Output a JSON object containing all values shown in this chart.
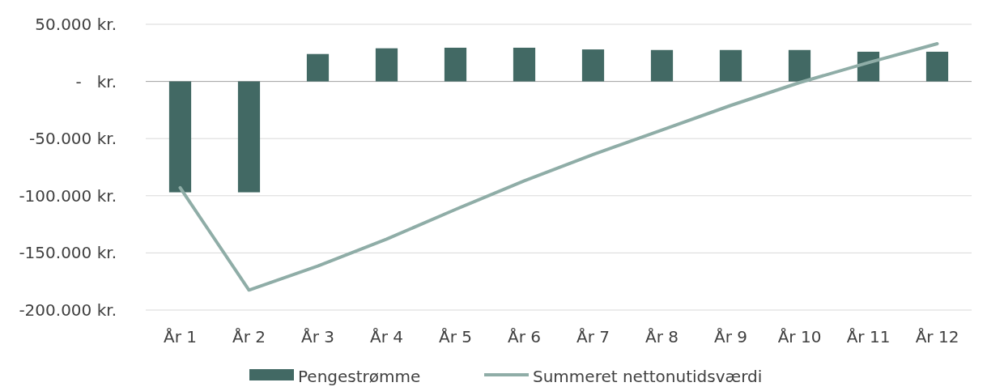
{
  "chart_data": {
    "type": "bar",
    "categories": [
      "År 1",
      "År 2",
      "År 3",
      "År 4",
      "År 5",
      "År 6",
      "År 7",
      "År 8",
      "År 9",
      "År 10",
      "År 11",
      "År 12"
    ],
    "series": [
      {
        "name": "Pengestrømme",
        "color": "#426964",
        "values": [
          -97000,
          -97000,
          24000,
          29000,
          29500,
          29500,
          28000,
          27500,
          27500,
          27500,
          26000,
          26000
        ]
      },
      {
        "name": "Summeret nettonutidsværdi",
        "color": "#8fada7",
        "type": "line",
        "values": [
          -93000,
          -182500,
          -161500,
          -138000,
          -112000,
          -87000,
          -64000,
          -42500,
          -21000,
          -1000,
          16500,
          33000
        ]
      }
    ],
    "ylim": [
      -200000,
      50000
    ],
    "yticks": [
      {
        "value": -200000,
        "label": "-200.000 kr."
      },
      {
        "value": -150000,
        "label": "-150.000 kr."
      },
      {
        "value": -100000,
        "label": "-100.000 kr."
      },
      {
        "value": -50000,
        "label": "-50.000 kr."
      },
      {
        "value": 0,
        "label": "-   kr."
      },
      {
        "value": 50000,
        "label": "50.000 kr."
      }
    ],
    "grid": "y",
    "legend": "bottom",
    "line_style": "solid",
    "marker": "none"
  }
}
